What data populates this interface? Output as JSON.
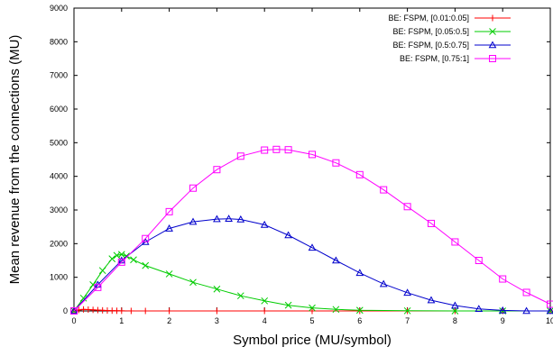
{
  "chart_data": {
    "type": "line",
    "xlabel": "Symbol price (MU/symbol)",
    "ylabel": "Mean revenue from the connections (MU)",
    "xlim": [
      0,
      10
    ],
    "ylim": [
      0,
      9000
    ],
    "x_ticks": [
      0,
      1,
      2,
      3,
      4,
      5,
      6,
      7,
      8,
      9,
      10
    ],
    "y_ticks": [
      0,
      1000,
      2000,
      3000,
      4000,
      5000,
      6000,
      7000,
      8000,
      9000
    ],
    "grid": false,
    "legend_position": "top-right",
    "series": [
      {
        "name": "BE: FSPM, [0.01:0.05]",
        "color": "#ff0000",
        "marker": "plus",
        "x": [
          0,
          0.1,
          0.2,
          0.3,
          0.4,
          0.5,
          0.6,
          0.7,
          0.8,
          0.9,
          1.0,
          1.2,
          1.5,
          2,
          3,
          4,
          5,
          6,
          7,
          8,
          9,
          10
        ],
        "y": [
          0,
          30,
          45,
          40,
          32,
          25,
          18,
          12,
          8,
          5,
          3,
          1,
          0,
          0,
          0,
          0,
          0,
          0,
          0,
          0,
          0,
          0
        ]
      },
      {
        "name": "BE: FSPM, [0.05:0.5]",
        "color": "#00cc00",
        "marker": "x",
        "x": [
          0,
          0.2,
          0.4,
          0.6,
          0.8,
          0.9,
          1.0,
          1.1,
          1.25,
          1.5,
          2,
          2.5,
          3,
          3.5,
          4,
          4.5,
          5,
          5.5,
          6,
          7,
          8,
          9,
          10
        ],
        "y": [
          0,
          380,
          780,
          1200,
          1550,
          1650,
          1680,
          1630,
          1520,
          1350,
          1100,
          850,
          650,
          450,
          300,
          170,
          90,
          45,
          20,
          5,
          0,
          0,
          0
        ]
      },
      {
        "name": "BE: FSPM, [0.5:0.75]",
        "color": "#0000cc",
        "marker": "triangle",
        "x": [
          0,
          0.5,
          1,
          1.5,
          2,
          2.5,
          3,
          3.25,
          3.5,
          4,
          4.5,
          5,
          5.5,
          6,
          6.5,
          7,
          7.5,
          8,
          8.5,
          9,
          9.5,
          10
        ],
        "y": [
          0,
          780,
          1500,
          2050,
          2450,
          2650,
          2730,
          2740,
          2720,
          2560,
          2250,
          1880,
          1500,
          1130,
          800,
          540,
          320,
          160,
          60,
          15,
          0,
          0
        ]
      },
      {
        "name": "BE: FSPM, [0.75:1]",
        "color": "#ff00ff",
        "marker": "square",
        "x": [
          0,
          0.5,
          1,
          1.5,
          2,
          2.5,
          3,
          3.5,
          4,
          4.25,
          4.5,
          5,
          5.5,
          6,
          6.5,
          7,
          7.5,
          8,
          8.5,
          9,
          9.5,
          10
        ],
        "y": [
          0,
          700,
          1450,
          2150,
          2950,
          3650,
          4200,
          4600,
          4780,
          4800,
          4790,
          4650,
          4400,
          4050,
          3600,
          3100,
          2600,
          2050,
          1500,
          950,
          550,
          200
        ]
      }
    ]
  }
}
